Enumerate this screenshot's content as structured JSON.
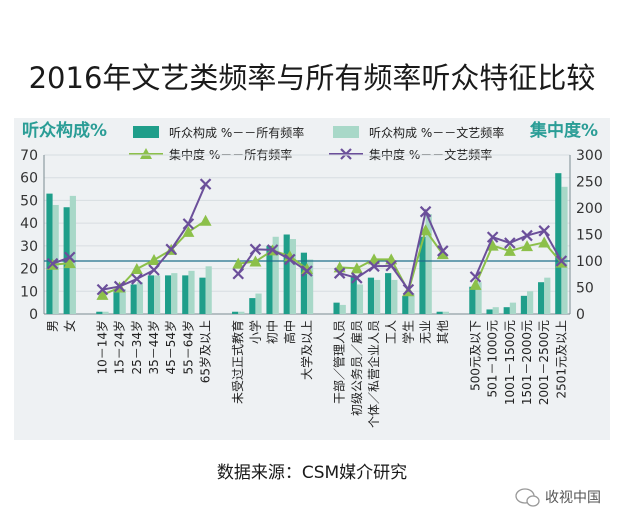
{
  "chart_data": {
    "type": "bar",
    "title": "2016年文艺类频率与所有频率听众特征比较",
    "left_axis_title": "听众构成%",
    "right_axis_title": "集中度%",
    "source": "数据来源：CSM媒介研究",
    "watermark": "收视中国",
    "y_left": {
      "min": 0,
      "max": 70,
      "ticks": [
        "0",
        "10",
        "20",
        "30",
        "40",
        "50",
        "60",
        "70"
      ]
    },
    "y_right": {
      "min": 0,
      "max": 300,
      "ticks": [
        "0",
        "50",
        "100",
        "150",
        "200",
        "250",
        "300"
      ]
    },
    "reference_line": 100,
    "categories": [
      "男",
      "女",
      "10－14岁",
      "15－24岁",
      "25－34岁",
      "35－44岁",
      "45－54岁",
      "55－64岁",
      "65岁及以上",
      "未受过正式教育",
      "小学",
      "初中",
      "高中",
      "大学及以上",
      "干部／管理人员",
      "初级公务员／雇员",
      "个体／私营企业人员",
      "工人",
      "学生",
      "无业",
      "其他",
      "500元及以下",
      "501－1000元",
      "1001－1500元",
      "1501－2000元",
      "2001－2500元",
      "2501元及以上"
    ],
    "groups": [
      2,
      7,
      5,
      7,
      6
    ],
    "series": [
      {
        "name": "听众构成 %－－所有频率",
        "kind": "bar",
        "axis": "left",
        "color": "#1f9e8a",
        "values": [
          53,
          47,
          1,
          10,
          13,
          17,
          17,
          17,
          16,
          1,
          7,
          30,
          35,
          27,
          5,
          17,
          16,
          18,
          8,
          34,
          1,
          12,
          2,
          3,
          8,
          14,
          62
        ]
      },
      {
        "name": "听众构成 %－－文艺频率",
        "kind": "bar",
        "axis": "left",
        "color": "#a8d8c8",
        "values": [
          48,
          52,
          1,
          11,
          14,
          17,
          18,
          19,
          21,
          1,
          9,
          34,
          33,
          24,
          4,
          13,
          15,
          15,
          9,
          44,
          1,
          14,
          3,
          5,
          10,
          16,
          56
        ]
      },
      {
        "name": "集中度 %－－所有频率",
        "kind": "line",
        "axis": "right",
        "color": "#8cc04a",
        "marker": "triangle",
        "values": [
          93,
          96,
          36,
          50,
          85,
          102,
          121,
          155,
          176,
          95,
          99,
          120,
          109,
          85,
          88,
          86,
          103,
          103,
          43,
          158,
          113,
          55,
          129,
          119,
          128,
          135,
          97
        ]
      },
      {
        "name": "集中度 %－－文艺频率",
        "kind": "line",
        "axis": "right",
        "color": "#6b4f9a",
        "marker": "x",
        "values": [
          95,
          107,
          46,
          52,
          66,
          83,
          122,
          170,
          245,
          76,
          122,
          121,
          103,
          81,
          77,
          68,
          90,
          91,
          46,
          193,
          119,
          70,
          145,
          134,
          148,
          157,
          100
        ]
      }
    ]
  }
}
